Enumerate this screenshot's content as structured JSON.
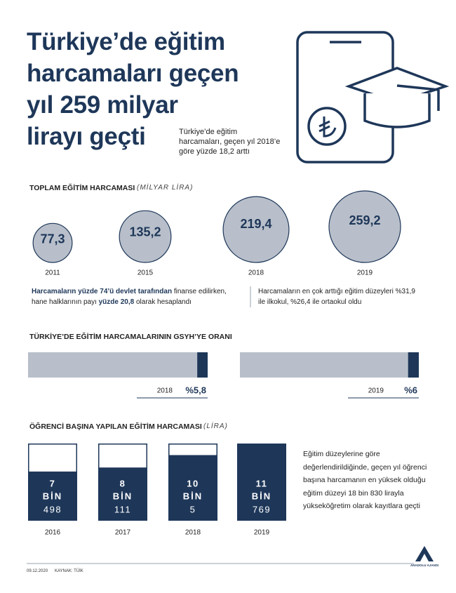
{
  "header": {
    "title_lines": [
      "Türkiye’de eğitim",
      "harcamaları geçen",
      "yıl 259 milyar",
      "lirayı geçti"
    ],
    "subtitle_lines": [
      "Türkiye’de eğitim",
      "harcamaları, geçen yıl 2018’e",
      "göre yüzde 18,2 arttı"
    ]
  },
  "chart_data": [
    {
      "type": "bubble",
      "title": "TOPLAM EĞİTİM HARCAMASI",
      "unit": "(MİLYAR LİRA)",
      "categories": [
        "2011",
        "2015",
        "2018",
        "2019"
      ],
      "values": [
        77.3,
        135.2,
        219.4,
        259.2
      ],
      "value_labels": [
        "77,3",
        "135,2",
        "219,4",
        "259,2"
      ],
      "color": "#b8bfca"
    },
    {
      "type": "progress",
      "title": "TÜRKİYE’DE EĞİTİM HARCAMALARININ GSYH’YE ORANI",
      "categories": [
        "2018",
        "2019"
      ],
      "values": [
        5.8,
        6
      ],
      "value_labels": [
        "%5,8",
        "%6"
      ],
      "xlim": [
        0,
        100
      ],
      "color": "#1e3759",
      "track_color": "#b8bfca"
    },
    {
      "type": "fill-bar",
      "title": "ÖĞRENCİ BAŞINA YAPILAN EĞİTİM HARCAMASI",
      "unit": "(LİRA)",
      "categories": [
        "2016",
        "2017",
        "2018",
        "2019"
      ],
      "values": [
        7498,
        8111,
        10005,
        11769
      ],
      "value_labels": [
        [
          "7",
          "BİN",
          "498"
        ],
        [
          "8",
          "BİN",
          "111"
        ],
        [
          "10",
          "BİN",
          "5"
        ],
        [
          "11",
          "BİN",
          "769"
        ]
      ],
      "ylim": [
        0,
        11769
      ],
      "color": "#1e3759"
    }
  ],
  "notes": [
    [
      "Harcamaların yüzde 74’ü devlet tarafından",
      " finanse edilirken, hane halklarının payı ",
      "yüzde 20,8",
      " olarak hesaplandı"
    ],
    [
      "Harcamaların en çok arttığı eğitim düzeyleri %31,9 ile ilkokul, %26,4 ile ortaokul oldu"
    ]
  ],
  "side_text": "Eğitim düzeylerine göre değerlendirildiğinde, geçen yıl öğrenci başına harcamanın en yüksek olduğu eğitim düzeyi 18 bin 830 lirayla yükseköğretim olarak kayıtlara geçti",
  "footer": {
    "date": "09.12.2020",
    "source": "KAYNAK: TÜİK",
    "logo": "ANADOLU AJANSI"
  }
}
